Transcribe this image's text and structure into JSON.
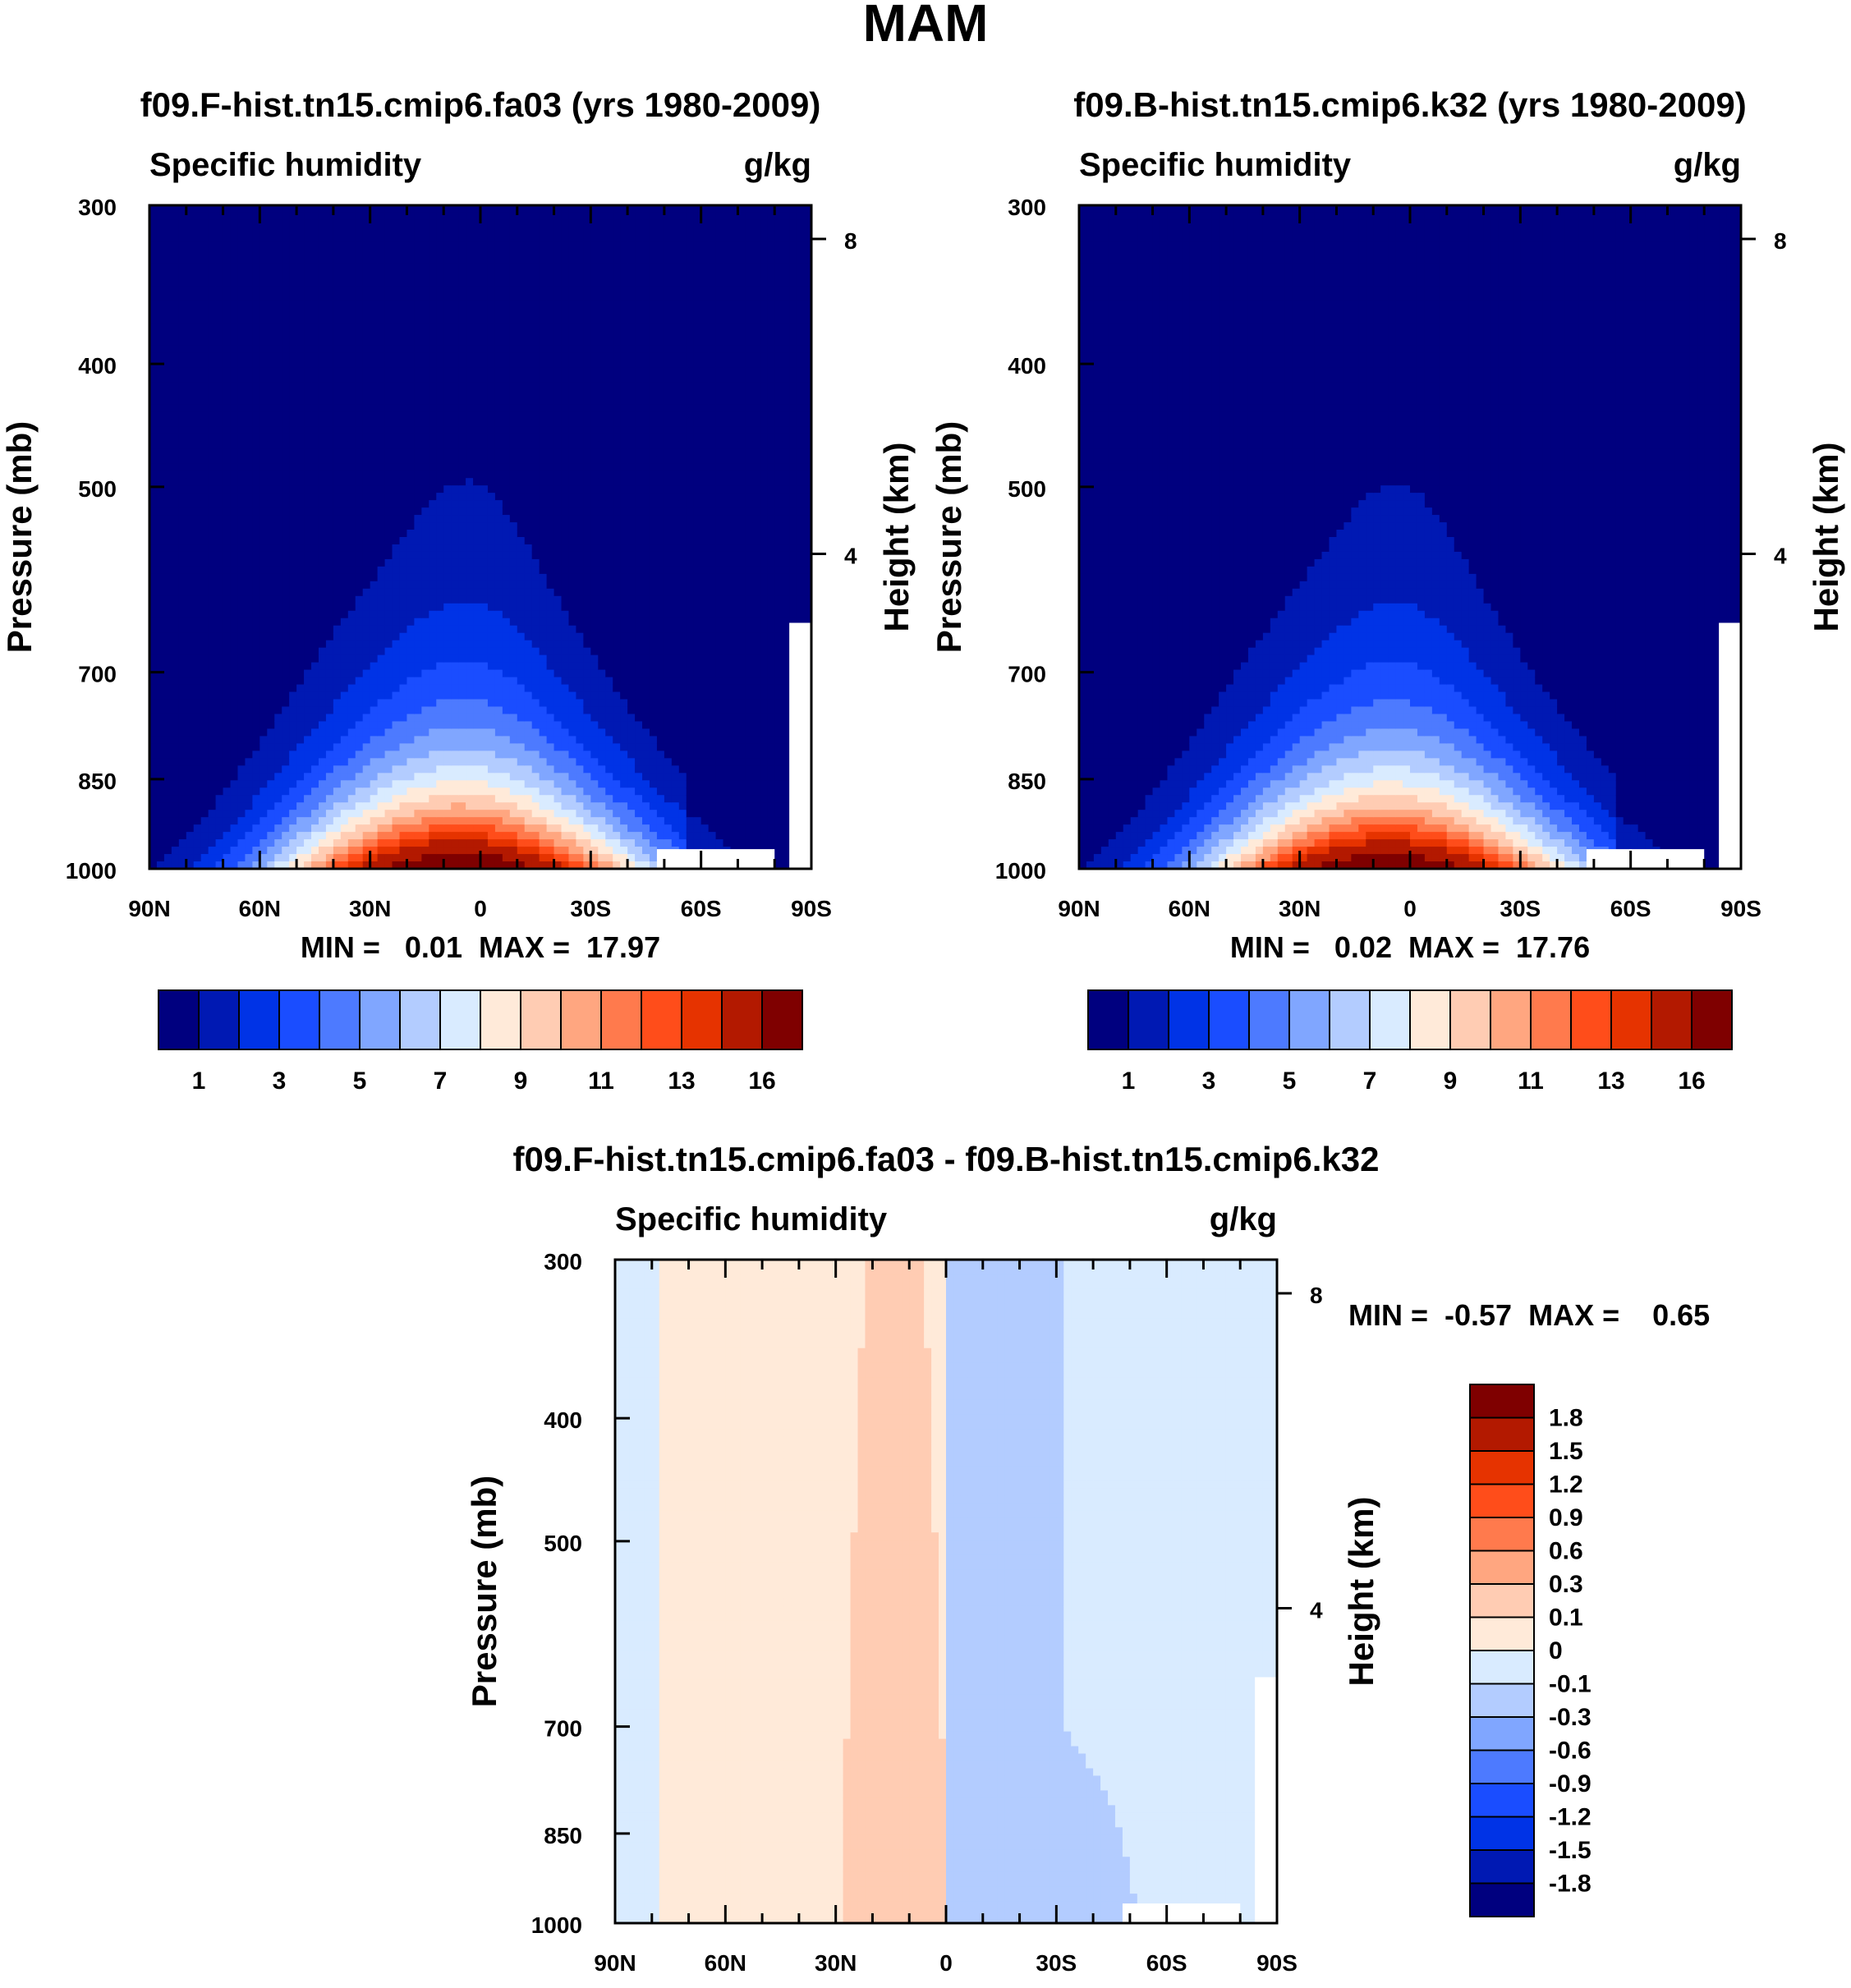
{
  "figure": {
    "title": "MAM"
  },
  "chart_data": [
    {
      "type": "contour",
      "title": "f09.F-hist.tn15.cmip6.fa03 (yrs 1980-2009)",
      "left_label": "Specific humidity",
      "right_label": "g/kg",
      "ylabel": "Pressure (mb)",
      "ylabel_right": "Height (km)",
      "yticks": [
        300,
        400,
        500,
        700,
        850,
        1000
      ],
      "yticks_right": [
        8,
        4
      ],
      "xticks": [
        "90N",
        "60N",
        "30N",
        "0",
        "30S",
        "60S",
        "90S"
      ],
      "xlim": [
        90,
        -90
      ],
      "ylim": [
        1000,
        300
      ],
      "min_max": "MIN =   0.01  MAX =  17.97",
      "field": {
        "min": 0.01,
        "max": 17.97,
        "peak_lat": 0,
        "peak_p": 1000
      },
      "colorbar_labels": [
        "1",
        "3",
        "5",
        "7",
        "9",
        "11",
        "13",
        "16"
      ]
    },
    {
      "type": "contour",
      "title": "f09.B-hist.tn15.cmip6.k32 (yrs 1980-2009)",
      "left_label": "Specific humidity",
      "right_label": "g/kg",
      "ylabel": "Pressure (mb)",
      "ylabel_right": "Height (km)",
      "yticks": [
        300,
        400,
        500,
        700,
        850,
        1000
      ],
      "yticks_right": [
        8,
        4
      ],
      "xticks": [
        "90N",
        "60N",
        "30N",
        "0",
        "30S",
        "60S",
        "90S"
      ],
      "xlim": [
        90,
        -90
      ],
      "ylim": [
        1000,
        300
      ],
      "min_max": "MIN =   0.02  MAX =  17.76",
      "field": {
        "min": 0.02,
        "max": 17.76,
        "peak_lat": 0,
        "peak_p": 1000
      },
      "colorbar_labels": [
        "1",
        "3",
        "5",
        "7",
        "9",
        "11",
        "13",
        "16"
      ]
    },
    {
      "type": "contour",
      "title": "f09.F-hist.tn15.cmip6.fa03 - f09.B-hist.tn15.cmip6.k32",
      "left_label": "Specific humidity",
      "right_label": "g/kg",
      "ylabel": "Pressure (mb)",
      "ylabel_right": "Height (km)",
      "yticks": [
        300,
        400,
        500,
        700,
        850,
        1000
      ],
      "yticks_right": [
        8,
        4
      ],
      "xticks": [
        "90N",
        "60N",
        "30N",
        "0",
        "30S",
        "60S",
        "90S"
      ],
      "xlim": [
        90,
        -90
      ],
      "ylim": [
        1000,
        300
      ],
      "min_max": "MIN =  -0.57  MAX =    0.65",
      "field": {
        "min": -0.57,
        "max": 0.65
      },
      "colorbar_labels": [
        "1.8",
        "1.5",
        "1.2",
        "0.9",
        "0.6",
        "0.3",
        "0.1",
        "0",
        "-0.1",
        "-0.3",
        "-0.6",
        "-0.9",
        "-1.2",
        "-1.5",
        "-1.8"
      ]
    }
  ],
  "colors": {
    "abs_levels": [
      "#00007f",
      "#0019b3",
      "#0033e6",
      "#1a4dff",
      "#4d7aff",
      "#80a6ff",
      "#b3ccff",
      "#d9ebff",
      "#ffead9",
      "#ffccb3",
      "#ffa680",
      "#ff7a4d",
      "#ff4d1a",
      "#e63300",
      "#b31900",
      "#7f0000"
    ],
    "diff_levels": [
      "#7f0000",
      "#b31900",
      "#e63300",
      "#ff4d1a",
      "#ff7a4d",
      "#ffa680",
      "#ffccb3",
      "#ffead9",
      "#d9ebff",
      "#b3ccff",
      "#80a6ff",
      "#4d7aff",
      "#1a4dff",
      "#0033e6",
      "#0019b3",
      "#00007f"
    ]
  }
}
